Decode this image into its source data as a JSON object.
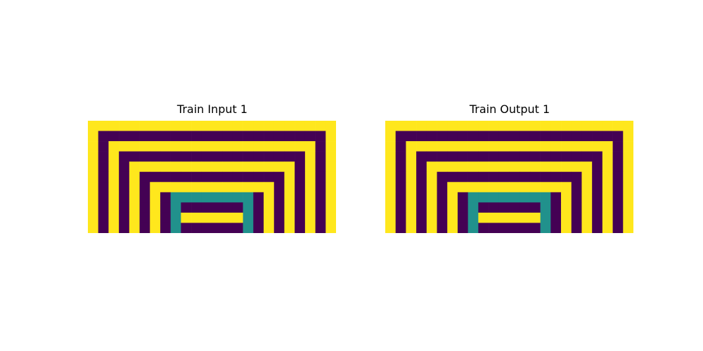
{
  "palette": {
    "0": "#440154",
    "1": "#ffe71d",
    "2": "#3b528b",
    "3": "#21918c"
  },
  "panels": [
    {
      "title": "Train Input 1",
      "grid": [
        "111111111111111111111111",
        "100000000000000000000001",
        "101111111111111111111101",
        "101000000000000000000101",
        "101011111111111111110101",
        "101010000000000000010101",
        "101010111111111111010101",
        "101010103333333301010101",
        "101010103000000301010101",
        "101010103111111301010101",
        "101010103000000301010101"
      ]
    },
    {
      "title": "Train Output 1",
      "grid": [
        "111111111111111111111111",
        "100000000000000000000001",
        "101111111111111111111101",
        "101000000000000000000101",
        "101011111111111111110101",
        "101010000000000000010101",
        "101010111111111111010101",
        "101010103333333301010101",
        "101010103000000301010101",
        "101010103111111301010101",
        "101010103000000301010101"
      ]
    }
  ]
}
